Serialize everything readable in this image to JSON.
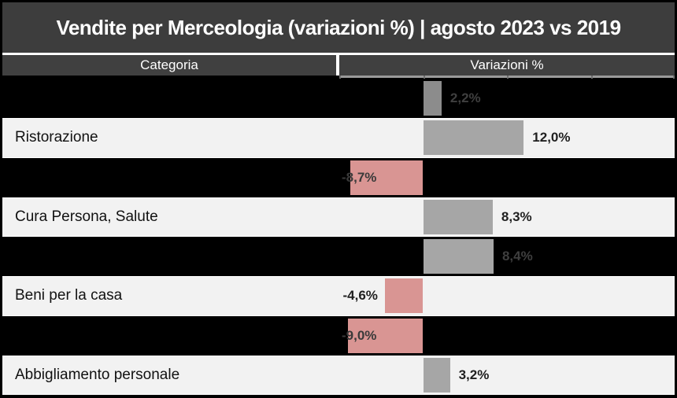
{
  "header": {
    "title": "Vendite per Merceologia (variazioni %) | agosto 2023 vs 2019"
  },
  "table": {
    "column_headers": {
      "category": "Categoria",
      "variation": "Variazioni %"
    }
  },
  "chart_data": {
    "type": "bar",
    "orientation": "horizontal",
    "title": "Vendite per Merceologia (variazioni %) | agosto 2023 vs 2019",
    "xlabel": "Variazioni %",
    "xlim": [
      -10,
      30
    ],
    "grid": false,
    "legend": false,
    "categories": [
      "",
      "Ristorazione",
      "",
      "Cura Persona, Salute",
      "",
      "Beni per la casa",
      "",
      "Abbigliamento personale"
    ],
    "values": [
      2.2,
      12.0,
      -8.7,
      8.3,
      8.4,
      -4.6,
      -9.0,
      3.2
    ],
    "value_labels": [
      "2,2%",
      "12,0%",
      "-8,7%",
      "8,3%",
      "8,4%",
      "-4,6%",
      "-9,0%",
      "3,2%"
    ],
    "row_styles": [
      "dark",
      "light",
      "dark",
      "light",
      "dark",
      "light",
      "dark",
      "light"
    ],
    "bar_colors": [
      "#8c8c8c",
      "#a6a6a6",
      "#d99593",
      "#a6a6a6",
      "#a6a6a6",
      "#d99593",
      "#d99593",
      "#a6a6a6"
    ],
    "label_colors": [
      "#3f3f3f",
      "#1f1f1f",
      "#3a3a3a",
      "#1f1f1f",
      "#3f3f3f",
      "#1f1f1f",
      "#3a3a3a",
      "#1f1f1f"
    ]
  },
  "colors": {
    "title_background": "#3d3d3d",
    "header_background": "#404040",
    "dark_row": "#000000",
    "light_row": "#f2f2f2",
    "positive_bar": "#a6a6a6",
    "total_bar": "#8c8c8c",
    "negative_bar": "#d99593",
    "axis_line": "#9a9a9a"
  }
}
